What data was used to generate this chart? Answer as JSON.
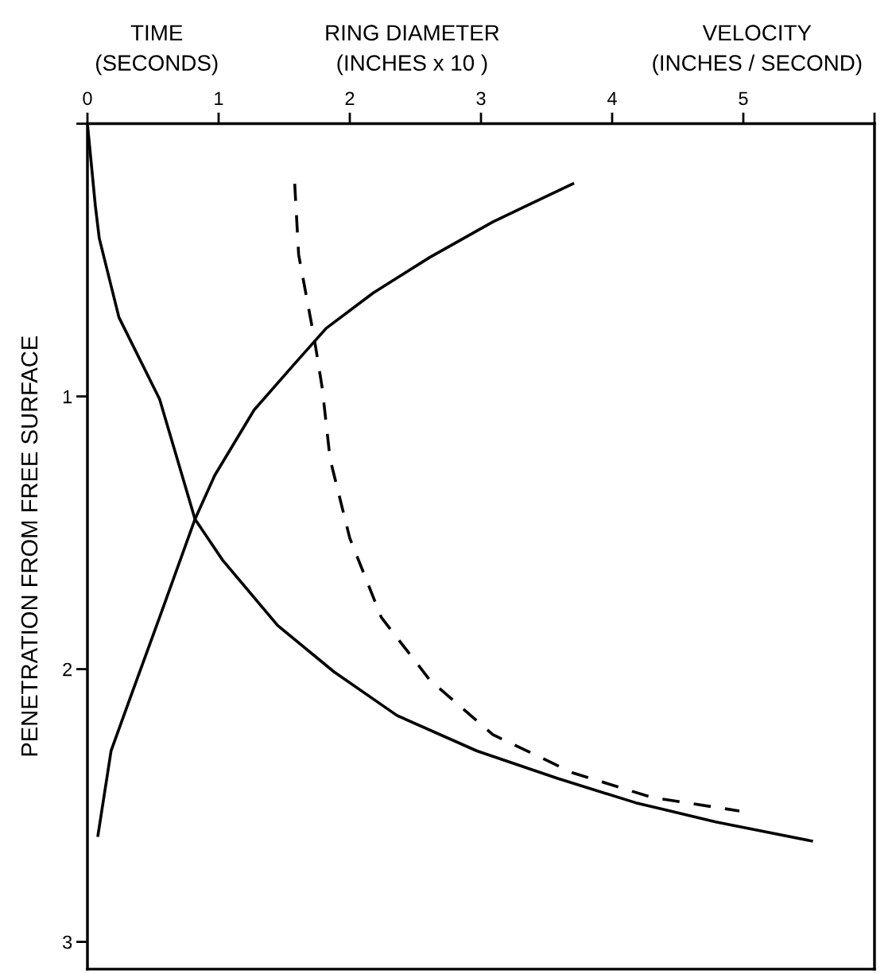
{
  "chart_data": {
    "type": "line",
    "ylabel": "PENETRATION FROM FREE SURFACE",
    "annotations": [
      "TIME\n(SECONDS)",
      "RING DIAMETER\n(INCHES x 10 )",
      "VELOCITY\n(INCHES / SECOND)"
    ],
    "xlim": [
      0,
      6
    ],
    "xticks": [
      0,
      1,
      2,
      3,
      4,
      5,
      {
        "value": 6,
        "label": null
      }
    ],
    "ylim": [
      3.1,
      0
    ],
    "yticks": [
      {
        "value": 0,
        "label": null
      },
      1,
      2,
      3
    ],
    "grid": false,
    "legend": false,
    "marker": "none",
    "series": [
      {
        "color": "#000000",
        "line_style": "solid",
        "x": [
          0,
          0.06,
          0.09,
          0.24,
          0.55,
          0.82,
          1.03,
          1.45,
          1.88,
          2.36,
          2.97,
          3.58,
          4.18,
          4.79,
          5.52
        ],
        "values": [
          0,
          0.3,
          0.42,
          0.71,
          1.01,
          1.45,
          1.6,
          1.84,
          2.01,
          2.17,
          2.3,
          2.4,
          2.49,
          2.56,
          2.63
        ]
      },
      {
        "color": "#000000",
        "line_style": "solid",
        "x": [
          0.08,
          0.18,
          0.33,
          0.55,
          0.82,
          0.97,
          1.27,
          1.58,
          1.82,
          2.18,
          2.61,
          3.09,
          3.7
        ],
        "values": [
          2.61,
          2.3,
          2.1,
          1.81,
          1.45,
          1.29,
          1.05,
          0.88,
          0.75,
          0.62,
          0.49,
          0.36,
          0.22
        ]
      },
      {
        "color": "#000000",
        "line_style": "dashed",
        "x": [
          1.58,
          1.61,
          1.73,
          1.79,
          1.85,
          2.0,
          2.24,
          2.61,
          3.09,
          3.7,
          4.3,
          4.97
        ],
        "values": [
          0.22,
          0.48,
          0.79,
          0.97,
          1.23,
          1.52,
          1.81,
          2.04,
          2.24,
          2.38,
          2.47,
          2.52
        ]
      }
    ]
  }
}
